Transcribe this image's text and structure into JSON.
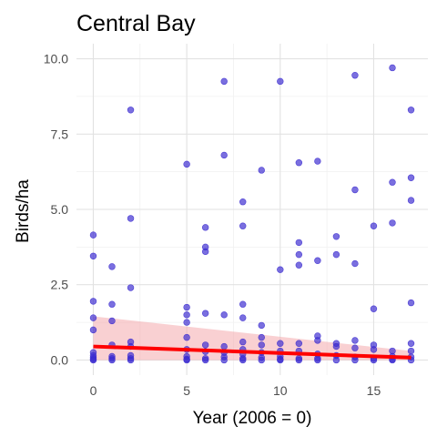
{
  "chart_data": {
    "type": "scatter",
    "title": "Central Bay",
    "xlabel": "Year (2006 = 0)",
    "ylabel": "Birds/ha",
    "xlim": [
      -0.9,
      17.9
    ],
    "ylim": [
      -0.5,
      10.5
    ],
    "x_ticks": [
      0,
      5,
      10,
      15
    ],
    "x_tick_labels": [
      "0",
      "5",
      "10",
      "15"
    ],
    "y_ticks": [
      0,
      2.5,
      5,
      7.5,
      10
    ],
    "y_tick_labels": [
      "0.0",
      "2.5",
      "5.0",
      "7.5",
      "10.0"
    ],
    "grid": true,
    "legend": "none",
    "point_color": "#3b2bd0",
    "trend_color": "#ff0000",
    "band_color": "#f4a9ad",
    "points": [
      {
        "x": 0,
        "y": 4.15
      },
      {
        "x": 0,
        "y": 3.45
      },
      {
        "x": 0,
        "y": 1.95
      },
      {
        "x": 0,
        "y": 1.4
      },
      {
        "x": 0,
        "y": 1.0
      },
      {
        "x": 0,
        "y": 0.25
      },
      {
        "x": 0,
        "y": 0.15
      },
      {
        "x": 0,
        "y": 0.08
      },
      {
        "x": 0,
        "y": 0.03
      },
      {
        "x": 0,
        "y": 0.0
      },
      {
        "x": 1,
        "y": 3.1
      },
      {
        "x": 1,
        "y": 1.85
      },
      {
        "x": 1,
        "y": 1.3
      },
      {
        "x": 1,
        "y": 0.5
      },
      {
        "x": 1,
        "y": 0.12
      },
      {
        "x": 1,
        "y": 0.05
      },
      {
        "x": 1,
        "y": 0.0
      },
      {
        "x": 2,
        "y": 8.3
      },
      {
        "x": 2,
        "y": 4.7
      },
      {
        "x": 2,
        "y": 2.4
      },
      {
        "x": 2,
        "y": 0.6
      },
      {
        "x": 2,
        "y": 0.45
      },
      {
        "x": 2,
        "y": 0.15
      },
      {
        "x": 2,
        "y": 0.05
      },
      {
        "x": 2,
        "y": 0.0
      },
      {
        "x": 5,
        "y": 6.5
      },
      {
        "x": 5,
        "y": 1.75
      },
      {
        "x": 5,
        "y": 1.5
      },
      {
        "x": 5,
        "y": 1.25
      },
      {
        "x": 5,
        "y": 0.75
      },
      {
        "x": 5,
        "y": 0.35
      },
      {
        "x": 5,
        "y": 0.12
      },
      {
        "x": 5,
        "y": 0.03
      },
      {
        "x": 5,
        "y": 0.0
      },
      {
        "x": 6,
        "y": 4.4
      },
      {
        "x": 6,
        "y": 3.75
      },
      {
        "x": 6,
        "y": 3.6
      },
      {
        "x": 6,
        "y": 1.55
      },
      {
        "x": 6,
        "y": 0.5
      },
      {
        "x": 6,
        "y": 0.28
      },
      {
        "x": 6,
        "y": 0.05
      },
      {
        "x": 6,
        "y": 0.0
      },
      {
        "x": 7,
        "y": 9.25
      },
      {
        "x": 7,
        "y": 6.8
      },
      {
        "x": 7,
        "y": 1.5
      },
      {
        "x": 7,
        "y": 0.45
      },
      {
        "x": 7,
        "y": 0.25
      },
      {
        "x": 7,
        "y": 0.1
      },
      {
        "x": 7,
        "y": 0.0
      },
      {
        "x": 8,
        "y": 5.25
      },
      {
        "x": 8,
        "y": 4.45
      },
      {
        "x": 8,
        "y": 1.85
      },
      {
        "x": 8,
        "y": 1.4
      },
      {
        "x": 8,
        "y": 0.6
      },
      {
        "x": 8,
        "y": 0.35
      },
      {
        "x": 8,
        "y": 0.2
      },
      {
        "x": 8,
        "y": 0.05
      },
      {
        "x": 8,
        "y": 0.0
      },
      {
        "x": 9,
        "y": 6.3
      },
      {
        "x": 9,
        "y": 1.15
      },
      {
        "x": 9,
        "y": 0.75
      },
      {
        "x": 9,
        "y": 0.5
      },
      {
        "x": 9,
        "y": 0.25
      },
      {
        "x": 9,
        "y": 0.08
      },
      {
        "x": 9,
        "y": 0.0
      },
      {
        "x": 10,
        "y": 9.25
      },
      {
        "x": 10,
        "y": 3.0
      },
      {
        "x": 10,
        "y": 0.55
      },
      {
        "x": 10,
        "y": 0.3
      },
      {
        "x": 10,
        "y": 0.12
      },
      {
        "x": 10,
        "y": 0.03
      },
      {
        "x": 10,
        "y": 0.0
      },
      {
        "x": 11,
        "y": 6.55
      },
      {
        "x": 11,
        "y": 3.9
      },
      {
        "x": 11,
        "y": 3.5
      },
      {
        "x": 11,
        "y": 3.15
      },
      {
        "x": 11,
        "y": 0.55
      },
      {
        "x": 11,
        "y": 0.3
      },
      {
        "x": 11,
        "y": 0.05
      },
      {
        "x": 11,
        "y": 0.0
      },
      {
        "x": 12,
        "y": 6.6
      },
      {
        "x": 12,
        "y": 3.3
      },
      {
        "x": 12,
        "y": 0.8
      },
      {
        "x": 12,
        "y": 0.65
      },
      {
        "x": 12,
        "y": 0.2
      },
      {
        "x": 12,
        "y": 0.05
      },
      {
        "x": 12,
        "y": 0.0
      },
      {
        "x": 13,
        "y": 4.1
      },
      {
        "x": 13,
        "y": 3.5
      },
      {
        "x": 13,
        "y": 0.55
      },
      {
        "x": 13,
        "y": 0.45
      },
      {
        "x": 13,
        "y": 0.15
      },
      {
        "x": 13,
        "y": 0.0
      },
      {
        "x": 14,
        "y": 9.45
      },
      {
        "x": 14,
        "y": 5.65
      },
      {
        "x": 14,
        "y": 3.2
      },
      {
        "x": 14,
        "y": 0.65
      },
      {
        "x": 14,
        "y": 0.4
      },
      {
        "x": 14,
        "y": 0.1
      },
      {
        "x": 14,
        "y": 0.0
      },
      {
        "x": 15,
        "y": 4.45
      },
      {
        "x": 15,
        "y": 1.7
      },
      {
        "x": 15,
        "y": 0.5
      },
      {
        "x": 15,
        "y": 0.35
      },
      {
        "x": 15,
        "y": 0.05
      },
      {
        "x": 15,
        "y": 0.0
      },
      {
        "x": 16,
        "y": 9.7
      },
      {
        "x": 16,
        "y": 5.9
      },
      {
        "x": 16,
        "y": 4.55
      },
      {
        "x": 16,
        "y": 0.3
      },
      {
        "x": 16,
        "y": 0.12
      },
      {
        "x": 16,
        "y": 0.03
      },
      {
        "x": 16,
        "y": 0.0
      },
      {
        "x": 17,
        "y": 8.3
      },
      {
        "x": 17,
        "y": 6.05
      },
      {
        "x": 17,
        "y": 5.3
      },
      {
        "x": 17,
        "y": 1.9
      },
      {
        "x": 17,
        "y": 0.55
      },
      {
        "x": 17,
        "y": 0.3
      },
      {
        "x": 17,
        "y": 0.1
      },
      {
        "x": 17,
        "y": 0.0
      }
    ],
    "trend": {
      "x": [
        0,
        17
      ],
      "y": [
        0.45,
        0.08
      ]
    },
    "band": {
      "x": [
        0,
        17
      ],
      "upper": [
        1.45,
        0.3
      ],
      "lower": [
        0.0,
        0.0
      ]
    }
  }
}
